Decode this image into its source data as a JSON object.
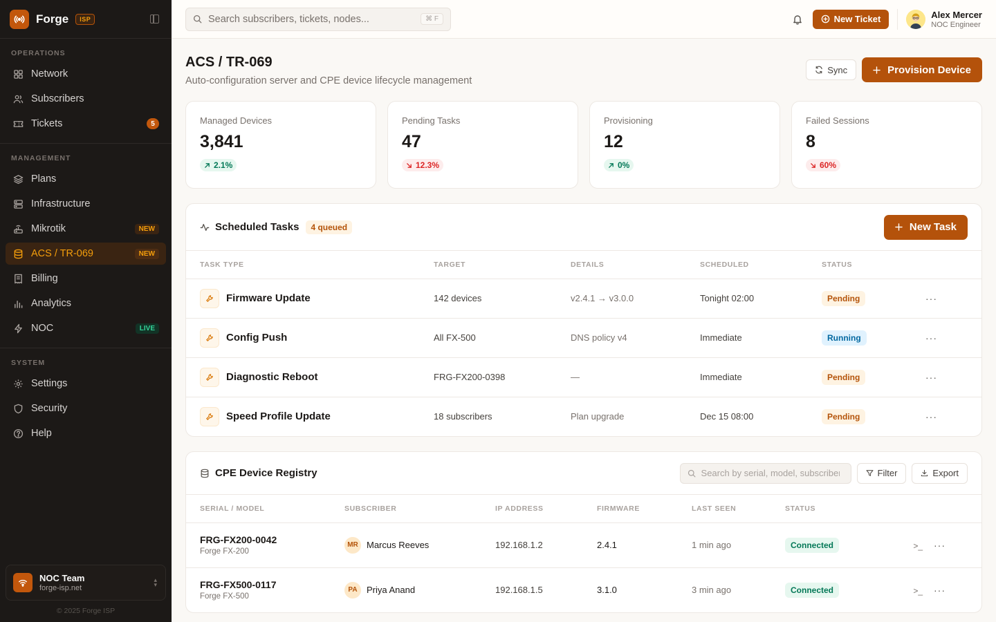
{
  "brand": {
    "name": "Forge",
    "badge": "ISP"
  },
  "nav": {
    "operations_label": "OPERATIONS",
    "management_label": "MANAGEMENT",
    "system_label": "SYSTEM",
    "operations": [
      {
        "label": "Network",
        "icon": "grid-icon"
      },
      {
        "label": "Subscribers",
        "icon": "users-icon"
      },
      {
        "label": "Tickets",
        "icon": "ticket-icon",
        "badge": "5"
      }
    ],
    "management": [
      {
        "label": "Plans",
        "icon": "layers-icon"
      },
      {
        "label": "Infrastructure",
        "icon": "server-icon"
      },
      {
        "label": "Mikrotik",
        "icon": "router-icon",
        "badge": "NEW"
      },
      {
        "label": "ACS / TR-069",
        "icon": "database-icon",
        "badge": "NEW",
        "active": true
      },
      {
        "label": "Billing",
        "icon": "receipt-icon"
      },
      {
        "label": "Analytics",
        "icon": "bar-chart-icon"
      },
      {
        "label": "NOC",
        "icon": "zap-icon",
        "badge": "LIVE"
      }
    ],
    "system": [
      {
        "label": "Settings",
        "icon": "gear-icon"
      },
      {
        "label": "Security",
        "icon": "shield-icon"
      },
      {
        "label": "Help",
        "icon": "help-icon"
      }
    ]
  },
  "team": {
    "name": "NOC Team",
    "domain": "forge-isp.net"
  },
  "copyright": "© 2025 Forge ISP",
  "topbar": {
    "search_placeholder": "Search subscribers, tickets, nodes...",
    "shortcut": "⌘ F",
    "new_ticket": "New Ticket",
    "user_name": "Alex Mercer",
    "user_role": "NOC Engineer"
  },
  "page": {
    "title": "ACS / TR-069",
    "subtitle": "Auto-configuration server and CPE device lifecycle management",
    "sync": "Sync",
    "provision": "Provision Device"
  },
  "stats": [
    {
      "label": "Managed Devices",
      "value": "3,841",
      "delta": "2.1%",
      "dir": "up"
    },
    {
      "label": "Pending Tasks",
      "value": "47",
      "delta": "12.3%",
      "dir": "down"
    },
    {
      "label": "Provisioning",
      "value": "12",
      "delta": "0%",
      "dir": "up"
    },
    {
      "label": "Failed Sessions",
      "value": "8",
      "delta": "60%",
      "dir": "down"
    }
  ],
  "tasks": {
    "title": "Scheduled Tasks",
    "queued": "4 queued",
    "new_task": "New Task",
    "columns": [
      "TASK TYPE",
      "TARGET",
      "DETAILS",
      "SCHEDULED",
      "STATUS"
    ],
    "rows": [
      {
        "type": "Firmware Update",
        "target": "142 devices",
        "details": "v2.4.1 → v3.0.0",
        "scheduled": "Tonight 02:00",
        "status": "Pending"
      },
      {
        "type": "Config Push",
        "target": "All FX-500",
        "details": "DNS policy v4",
        "scheduled": "Immediate",
        "status": "Running"
      },
      {
        "type": "Diagnostic Reboot",
        "target": "FRG-FX200-0398",
        "details": "—",
        "scheduled": "Immediate",
        "status": "Pending"
      },
      {
        "type": "Speed Profile Update",
        "target": "18 subscribers",
        "details": "Plan upgrade",
        "scheduled": "Dec 15 08:00",
        "status": "Pending"
      }
    ]
  },
  "registry": {
    "title": "CPE Device Registry",
    "search_placeholder": "Search by serial, model, subscriber...",
    "filter": "Filter",
    "export": "Export",
    "columns": [
      "SERIAL / MODEL",
      "SUBSCRIBER",
      "IP ADDRESS",
      "FIRMWARE",
      "LAST SEEN",
      "STATUS"
    ],
    "rows": [
      {
        "serial": "FRG-FX200-0042",
        "model": "Forge FX-200",
        "initials": "MR",
        "subscriber": "Marcus Reeves",
        "ip": "192.168.1.2",
        "firmware": "2.4.1",
        "last_seen": "1 min ago",
        "status": "Connected"
      },
      {
        "serial": "FRG-FX500-0117",
        "model": "Forge FX-500",
        "initials": "PA",
        "subscriber": "Priya Anand",
        "ip": "192.168.1.5",
        "firmware": "3.1.0",
        "last_seen": "3 min ago",
        "status": "Connected"
      }
    ]
  },
  "colors": {
    "accent": "#b4520b",
    "sidebar": "#1c1917",
    "active_nav": "#f59e0b",
    "success": "#047857",
    "danger": "#dc2626",
    "info": "#0369a1"
  }
}
